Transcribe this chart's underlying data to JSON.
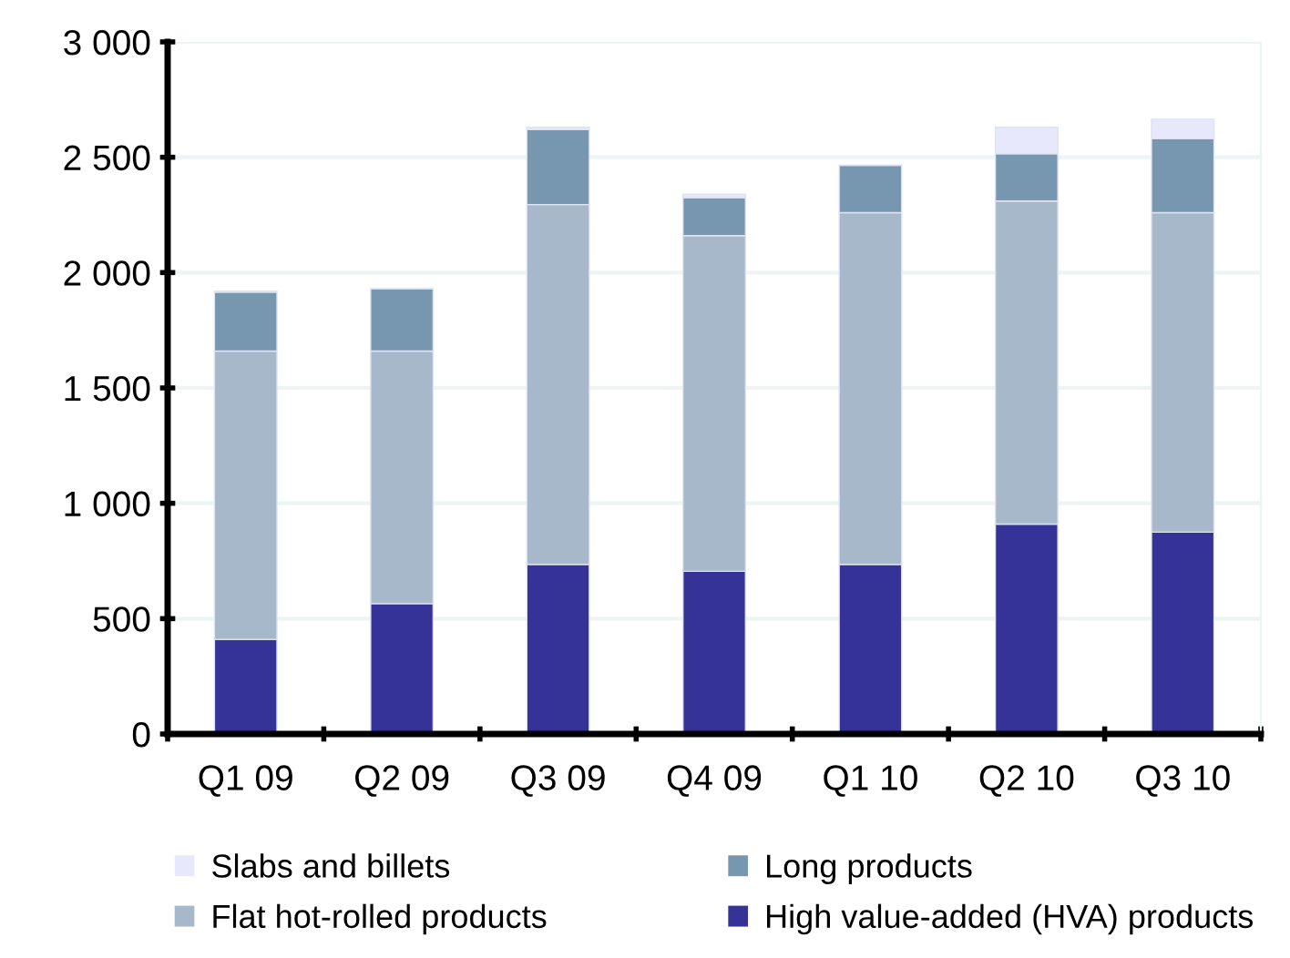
{
  "chart_data": {
    "type": "bar",
    "stacked": true,
    "categories": [
      "Q1 09",
      "Q2 09",
      "Q3 09",
      "Q4 09",
      "Q1 10",
      "Q2 10",
      "Q3 10"
    ],
    "series": [
      {
        "name": "High value-added (HVA) products",
        "color": "#353398",
        "values": [
          410,
          565,
          735,
          705,
          735,
          910,
          875
        ]
      },
      {
        "name": "Flat hot-rolled products",
        "color": "#a6b8ca",
        "values": [
          1250,
          1095,
          1560,
          1455,
          1525,
          1400,
          1385
        ]
      },
      {
        "name": "Long products",
        "color": "#7796b0",
        "values": [
          255,
          270,
          325,
          165,
          205,
          205,
          320
        ]
      },
      {
        "name": "Slabs and billets",
        "color": "#e8e8fc",
        "values": [
          5,
          0,
          10,
          15,
          0,
          115,
          85
        ]
      }
    ],
    "ylim": [
      0,
      3000
    ],
    "yticks": [
      0,
      {
        "value": 500,
        "label": "500"
      },
      {
        "value": 1000,
        "label": "1 000"
      },
      {
        "value": 1500,
        "label": "1 500"
      },
      {
        "value": 2000,
        "label": "2 000"
      },
      {
        "value": 2500,
        "label": "2 500"
      },
      {
        "value": 3000,
        "label": "3 000"
      }
    ],
    "grid": "y",
    "legend": "bottom"
  }
}
